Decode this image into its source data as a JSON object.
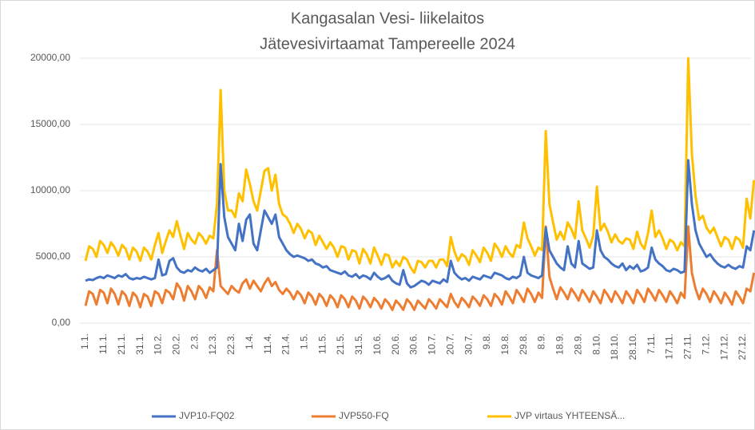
{
  "chart_data": {
    "type": "line",
    "title": "Kangasalan Vesi- liikelaitos",
    "subtitle": "Jätevesivirtaamat Tampereelle 2024",
    "ylim": [
      0,
      20000
    ],
    "yticks": [
      {
        "value": 0,
        "label": "0,00"
      },
      {
        "value": 5000,
        "label": "5000,00"
      },
      {
        "value": 10000,
        "label": "10000,00"
      },
      {
        "value": 15000,
        "label": "15000,00"
      },
      {
        "value": 20000,
        "label": "20000,00"
      }
    ],
    "grid": true,
    "legend": "bottom",
    "categories": [
      "1.1.",
      null,
      null,
      null,
      null,
      "11.1.",
      null,
      null,
      null,
      null,
      "21.1.",
      null,
      null,
      null,
      null,
      "31.1.",
      null,
      null,
      null,
      null,
      "10.2.",
      null,
      null,
      null,
      null,
      "20.2.",
      null,
      null,
      null,
      null,
      "2.3.",
      null,
      null,
      null,
      null,
      "12.3.",
      null,
      null,
      null,
      null,
      "22.3.",
      null,
      null,
      null,
      null,
      "1.4.",
      null,
      null,
      null,
      null,
      "11.4.",
      null,
      null,
      null,
      null,
      "21.4.",
      null,
      null,
      null,
      null,
      "1.5.",
      null,
      null,
      null,
      null,
      "11.5.",
      null,
      null,
      null,
      null,
      "21.5.",
      null,
      null,
      null,
      null,
      "31.5.",
      null,
      null,
      null,
      null,
      "10.6.",
      null,
      null,
      null,
      null,
      "20.6.",
      null,
      null,
      null,
      null,
      "30.6.",
      null,
      null,
      null,
      null,
      "10.7.",
      null,
      null,
      null,
      null,
      "20.7.",
      null,
      null,
      null,
      null,
      "30.7.",
      null,
      null,
      null,
      null,
      "9.8.",
      null,
      null,
      null,
      null,
      "19.8.",
      null,
      null,
      null,
      null,
      "29.8.",
      null,
      null,
      null,
      null,
      "8.9.",
      null,
      null,
      null,
      null,
      "18.9.",
      null,
      null,
      null,
      null,
      "28.9.",
      null,
      null,
      null,
      null,
      "8.10.",
      null,
      null,
      null,
      null,
      "18.10.",
      null,
      null,
      null,
      null,
      "28.10.",
      null,
      null,
      null,
      null,
      "7.11.",
      null,
      null,
      null,
      null,
      "17.11.",
      null,
      null,
      null,
      null,
      "27.11.",
      null,
      null,
      null,
      null,
      "7.12.",
      null,
      null,
      null,
      null,
      "17.12.",
      null,
      null,
      null,
      null,
      "27.12.",
      null,
      null,
      null
    ],
    "series": [
      {
        "name": "JVP10-FQ02",
        "color": "#4472c4",
        "values": [
          3200,
          3300,
          3250,
          3400,
          3500,
          3400,
          3600,
          3500,
          3400,
          3600,
          3500,
          3700,
          3400,
          3300,
          3400,
          3350,
          3500,
          3400,
          3300,
          3400,
          4800,
          3600,
          3700,
          4700,
          4900,
          4200,
          3900,
          3800,
          4000,
          3900,
          4200,
          4000,
          3900,
          4100,
          3800,
          4000,
          4200,
          12000,
          8000,
          6500,
          6000,
          5500,
          7500,
          6200,
          7800,
          8200,
          6000,
          5500,
          7000,
          8500,
          8000,
          7500,
          8200,
          6500,
          6000,
          5500,
          5200,
          5000,
          5100,
          5000,
          4900,
          4700,
          4800,
          4500,
          4400,
          4200,
          4300,
          4000,
          3900,
          3800,
          3700,
          3900,
          3600,
          3500,
          3700,
          3400,
          3600,
          3500,
          3300,
          3800,
          3500,
          3300,
          3400,
          3600,
          3200,
          3000,
          2900,
          4000,
          3000,
          2700,
          2800,
          3000,
          3200,
          3100,
          2900,
          3200,
          3100,
          3000,
          3300,
          3100,
          4700,
          3800,
          3500,
          3300,
          3400,
          3200,
          3500,
          3400,
          3300,
          3600,
          3500,
          3400,
          3800,
          3700,
          3600,
          3400,
          3300,
          3500,
          3400,
          3600,
          5000,
          3800,
          3600,
          3500,
          3400,
          3600,
          7200,
          5500,
          5000,
          4500,
          4200,
          4000,
          5800,
          4500,
          4200,
          6200,
          4500,
          4300,
          4100,
          4200,
          7000,
          5500,
          5000,
          4800,
          4500,
          4300,
          4200,
          4500,
          4000,
          4300,
          4100,
          4400,
          3900,
          4000,
          4200,
          5700,
          4800,
          4500,
          4300,
          4000,
          3900,
          4100,
          4000,
          3800,
          3900,
          12300,
          9000,
          7000,
          6000,
          5500,
          5000,
          5200,
          4800,
          4500,
          4300,
          4200,
          4400,
          4200,
          4100,
          4300,
          4200,
          5800,
          5500,
          7000
        ]
      },
      {
        "name": "JVP550-FQ",
        "color": "#ed7d31",
        "values": [
          1300,
          2400,
          2200,
          1400,
          2500,
          2300,
          1500,
          2600,
          2200,
          1400,
          2400,
          2100,
          1300,
          2300,
          2000,
          1200,
          2200,
          2000,
          1300,
          2400,
          2200,
          1500,
          2500,
          2300,
          1800,
          3000,
          2600,
          1700,
          2800,
          2400,
          1800,
          2800,
          2500,
          1900,
          2700,
          2400,
          5500,
          2800,
          2500,
          2200,
          2800,
          2500,
          2300,
          3000,
          3300,
          2600,
          3200,
          2800,
          2400,
          3000,
          3400,
          2800,
          3100,
          2500,
          2200,
          2600,
          2300,
          1800,
          2400,
          2100,
          1500,
          2300,
          2000,
          1400,
          2200,
          1900,
          1300,
          2100,
          1800,
          1200,
          2100,
          1800,
          1200,
          2000,
          1700,
          1100,
          2000,
          1700,
          1200,
          1900,
          1600,
          1100,
          1800,
          1500,
          1000,
          1700,
          1400,
          1000,
          1800,
          1500,
          1000,
          1700,
          1400,
          1100,
          1800,
          1500,
          1100,
          1800,
          1500,
          1200,
          2200,
          1600,
          1200,
          1900,
          1600,
          1200,
          2000,
          1700,
          1300,
          2100,
          1800,
          1300,
          2200,
          1900,
          1400,
          2400,
          2000,
          1500,
          2500,
          2100,
          1600,
          2600,
          2200,
          1600,
          2300,
          1900,
          7300,
          3500,
          2600,
          1800,
          2700,
          2300,
          1800,
          2600,
          2200,
          1700,
          2500,
          2100,
          1600,
          2400,
          2000,
          1500,
          2500,
          2100,
          1600,
          2400,
          2000,
          1500,
          2400,
          2000,
          1500,
          2500,
          2100,
          1600,
          2600,
          2200,
          1700,
          2500,
          2100,
          1600,
          2400,
          2000,
          1500,
          2300,
          1900,
          7300,
          3800,
          2600,
          1800,
          2600,
          2200,
          1600,
          2400,
          2000,
          1500,
          2300,
          1900,
          1400,
          2400,
          2000,
          1500,
          2600,
          2400,
          3800
        ]
      },
      {
        "name": "JVP virtaus YHTEENSÄ...",
        "color": "#ffc000",
        "values": [
          4700,
          5800,
          5600,
          5000,
          6200,
          5900,
          5300,
          6100,
          5700,
          5100,
          5900,
          5600,
          4800,
          5700,
          5400,
          4700,
          5700,
          5400,
          4800,
          5900,
          6800,
          5300,
          6200,
          7000,
          6500,
          7700,
          6600,
          5600,
          6800,
          6300,
          6000,
          6800,
          6500,
          6000,
          6600,
          6400,
          9000,
          17600,
          10000,
          8500,
          8500,
          8000,
          9800,
          9200,
          11600,
          10500,
          9200,
          8500,
          10000,
          11500,
          11700,
          10000,
          11200,
          9000,
          8200,
          8000,
          7500,
          6800,
          7500,
          7100,
          6400,
          7000,
          6800,
          5900,
          6600,
          6100,
          5600,
          6100,
          5700,
          5000,
          5800,
          5700,
          4800,
          5500,
          5400,
          4500,
          5600,
          5200,
          4500,
          5700,
          5100,
          4400,
          5200,
          5100,
          4200,
          4700,
          4300,
          5000,
          4800,
          4200,
          3800,
          4700,
          4600,
          4200,
          4700,
          4700,
          4200,
          4800,
          4800,
          4300,
          6500,
          5400,
          4700,
          5200,
          5000,
          4400,
          5500,
          5100,
          4600,
          5700,
          5300,
          4700,
          6000,
          5600,
          5000,
          5800,
          5300,
          5000,
          5900,
          5700,
          7600,
          6400,
          5800,
          5100,
          5700,
          5500,
          14500,
          9000,
          7600,
          6300,
          6900,
          6300,
          7600,
          7100,
          6400,
          9200,
          7000,
          6400,
          5700,
          6600,
          10300,
          7000,
          7500,
          6900,
          6100,
          6700,
          6200,
          6000,
          6400,
          6300,
          5600,
          6900,
          6000,
          5600,
          6800,
          8500,
          6500,
          7000,
          6400,
          5600,
          6300,
          6100,
          5500,
          6100,
          5800,
          20000,
          12800,
          9600,
          7800,
          8100,
          7200,
          6800,
          7200,
          6500,
          5800,
          6500,
          6300,
          5600,
          6500,
          6300,
          5700,
          9400,
          7900,
          10800
        ]
      }
    ]
  }
}
